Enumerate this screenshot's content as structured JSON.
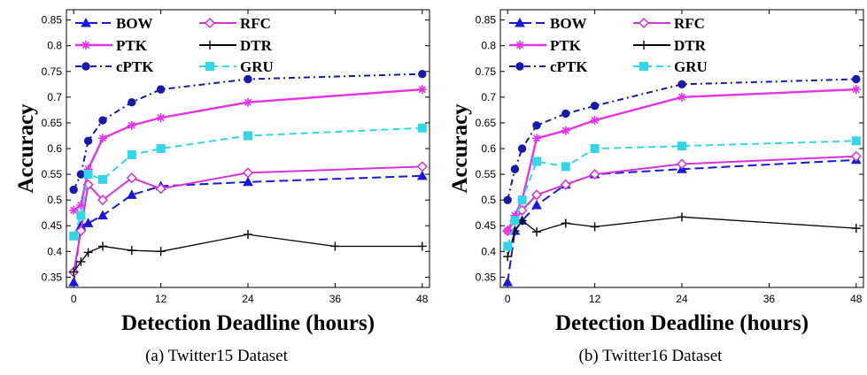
{
  "chart_data": [
    {
      "type": "line",
      "caption": "(a)  Twitter15 Dataset",
      "xlabel": "Detection Deadline (hours)",
      "ylabel": "Accuracy",
      "xlim": [
        -1,
        49
      ],
      "ylim": [
        0.33,
        0.87
      ],
      "xticks": [
        0,
        12,
        24,
        36,
        48
      ],
      "yticks": [
        0.35,
        0.4,
        0.45,
        0.5,
        0.55,
        0.6,
        0.65,
        0.7,
        0.75,
        0.8,
        0.85
      ],
      "legend_position": "top-left",
      "series": [
        {
          "name": "BOW",
          "color": "#1a1ad6",
          "dash": "long-dash",
          "marker": "triangle",
          "x": [
            0,
            1,
            2,
            4,
            8,
            12,
            24,
            48
          ],
          "y": [
            0.34,
            0.45,
            0.455,
            0.47,
            0.51,
            0.527,
            0.535,
            0.547
          ]
        },
        {
          "name": "RFC",
          "color": "#d633d6",
          "dash": "solid",
          "marker": "diamond",
          "x": [
            0,
            1,
            2,
            4,
            8,
            12,
            24,
            48
          ],
          "y": [
            0.36,
            0.44,
            0.53,
            0.5,
            0.543,
            0.522,
            0.553,
            0.565
          ]
        },
        {
          "name": "PTK",
          "color": "#e633e6",
          "dash": "solid-thick",
          "marker": "star",
          "x": [
            0,
            1,
            2,
            4,
            8,
            12,
            24,
            48
          ],
          "y": [
            0.48,
            0.49,
            0.56,
            0.62,
            0.645,
            0.66,
            0.69,
            0.715
          ]
        },
        {
          "name": "DTR",
          "color": "#000000",
          "dash": "solid",
          "marker": "plus",
          "x": [
            0,
            1,
            2,
            4,
            8,
            12,
            24,
            36,
            48
          ],
          "y": [
            0.36,
            0.38,
            0.398,
            0.41,
            0.402,
            0.4,
            0.433,
            0.41,
            0.41
          ]
        },
        {
          "name": "cPTK",
          "color": "#1a1aa8",
          "dash": "dash-dot",
          "marker": "circle",
          "x": [
            0,
            1,
            2,
            4,
            8,
            12,
            24,
            48
          ],
          "y": [
            0.52,
            0.55,
            0.615,
            0.655,
            0.69,
            0.715,
            0.735,
            0.745
          ]
        },
        {
          "name": "GRU",
          "color": "#33d6e6",
          "dash": "dashed",
          "marker": "square",
          "x": [
            0,
            1,
            2,
            4,
            8,
            12,
            24,
            48
          ],
          "y": [
            0.43,
            0.47,
            0.55,
            0.54,
            0.588,
            0.6,
            0.625,
            0.64
          ]
        }
      ]
    },
    {
      "type": "line",
      "caption": "(b)  Twitter16 Dataset",
      "xlabel": "Detection Deadline (hours)",
      "ylabel": "Accuracy",
      "xlim": [
        -1,
        49
      ],
      "ylim": [
        0.33,
        0.87
      ],
      "xticks": [
        0,
        12,
        24,
        36,
        48
      ],
      "yticks": [
        0.35,
        0.4,
        0.45,
        0.5,
        0.55,
        0.6,
        0.65,
        0.7,
        0.75,
        0.8,
        0.85
      ],
      "legend_position": "top-left",
      "series": [
        {
          "name": "BOW",
          "color": "#1a1ad6",
          "dash": "long-dash",
          "marker": "triangle",
          "x": [
            0,
            1,
            2,
            4,
            8,
            12,
            24,
            48
          ],
          "y": [
            0.34,
            0.44,
            0.46,
            0.49,
            0.53,
            0.55,
            0.56,
            0.578
          ]
        },
        {
          "name": "RFC",
          "color": "#d633d6",
          "dash": "solid",
          "marker": "diamond",
          "x": [
            0,
            1,
            2,
            4,
            8,
            12,
            24,
            48
          ],
          "y": [
            0.44,
            0.46,
            0.48,
            0.51,
            0.53,
            0.55,
            0.57,
            0.585
          ]
        },
        {
          "name": "PTK",
          "color": "#e633e6",
          "dash": "solid-thick",
          "marker": "star",
          "x": [
            0,
            1,
            2,
            4,
            8,
            12,
            24,
            48
          ],
          "y": [
            0.44,
            0.47,
            0.5,
            0.62,
            0.635,
            0.655,
            0.7,
            0.715
          ]
        },
        {
          "name": "DTR",
          "color": "#000000",
          "dash": "solid",
          "marker": "plus",
          "x": [
            0,
            1,
            2,
            4,
            8,
            12,
            24,
            48
          ],
          "y": [
            0.39,
            0.44,
            0.46,
            0.438,
            0.455,
            0.448,
            0.467,
            0.445
          ]
        },
        {
          "name": "cPTK",
          "color": "#1a1aa8",
          "dash": "dash-dot",
          "marker": "circle",
          "x": [
            0,
            1,
            2,
            4,
            8,
            12,
            24,
            48
          ],
          "y": [
            0.5,
            0.56,
            0.6,
            0.645,
            0.668,
            0.683,
            0.725,
            0.735
          ]
        },
        {
          "name": "GRU",
          "color": "#33d6e6",
          "dash": "dashed",
          "marker": "square",
          "x": [
            0,
            1,
            2,
            4,
            8,
            12,
            24,
            48
          ],
          "y": [
            0.41,
            0.46,
            0.5,
            0.575,
            0.565,
            0.6,
            0.605,
            0.615
          ]
        }
      ]
    }
  ]
}
